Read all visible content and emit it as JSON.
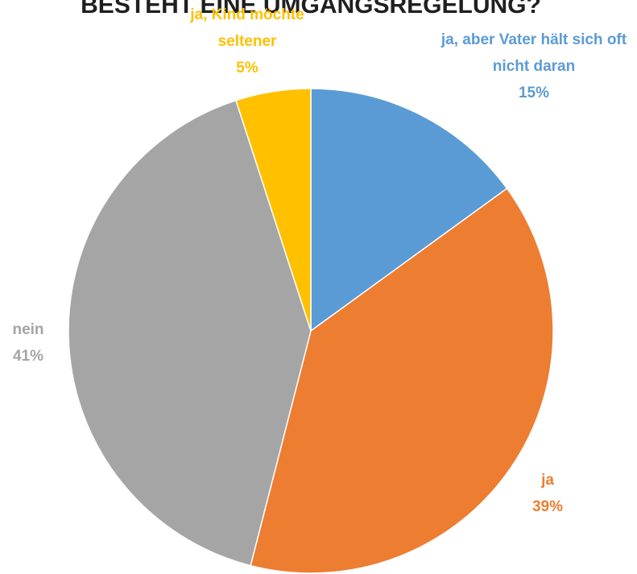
{
  "chart_data": {
    "type": "pie",
    "title": "BESTEHT EINE UMGANGSREGELUNG?",
    "categories": [
      "ja, aber Vater hält sich oft nicht daran",
      "ja",
      "nein",
      "ja, Kind möchte seltener"
    ],
    "values": [
      15,
      39,
      41,
      5
    ],
    "value_labels": [
      "15%",
      "39%",
      "41%",
      "5%"
    ],
    "colors": [
      "#5b9bd5",
      "#ed7d31",
      "#a5a5a5",
      "#ffc000"
    ]
  }
}
